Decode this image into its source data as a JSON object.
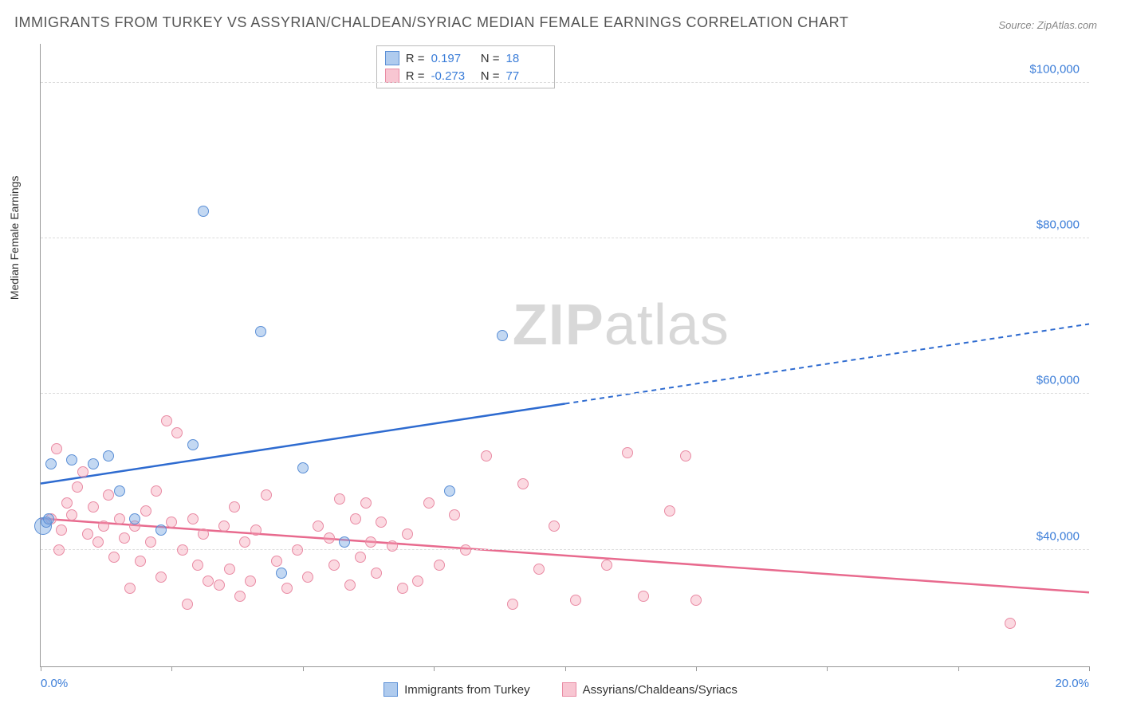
{
  "title": "IMMIGRANTS FROM TURKEY VS ASSYRIAN/CHALDEAN/SYRIAC MEDIAN FEMALE EARNINGS CORRELATION CHART",
  "source": "Source: ZipAtlas.com",
  "ylabel": "Median Female Earnings",
  "watermark_zip": "ZIP",
  "watermark_atlas": "atlas",
  "colors": {
    "blue_fill": "rgba(122,168,226,0.45)",
    "blue_stroke": "#5b8fd6",
    "blue_line": "#2e6bd0",
    "pink_fill": "rgba(244,160,180,0.4)",
    "pink_stroke": "#e98ba4",
    "pink_line": "#e86a8e",
    "grid": "#dddddd",
    "axis": "#999999",
    "tick_text": "#3b7dd8",
    "title_text": "#555555",
    "bg": "#ffffff"
  },
  "chart": {
    "type": "scatter",
    "xlim": [
      0,
      20
    ],
    "ylim": [
      25000,
      105000
    ],
    "x_ticks": [
      0,
      2.5,
      5,
      7.5,
      10,
      12.5,
      15,
      17.5,
      20
    ],
    "x_tick_labels": {
      "0": "0.0%",
      "20": "20.0%"
    },
    "y_gridlines": [
      40000,
      60000,
      80000,
      100000
    ],
    "y_tick_labels": {
      "40000": "$40,000",
      "60000": "$60,000",
      "80000": "$80,000",
      "100000": "$100,000"
    },
    "marker_size": 14,
    "trend_line_width": 2.5,
    "series": [
      {
        "name": "Immigrants from Turkey",
        "color_key": "blue",
        "R": "0.197",
        "N": "18",
        "trend": {
          "y_at_0": 48500,
          "y_at_20": 69000,
          "solid_until_x": 10
        },
        "points": [
          {
            "x": 3.1,
            "y": 83500
          },
          {
            "x": 4.2,
            "y": 68000
          },
          {
            "x": 8.8,
            "y": 67500
          },
          {
            "x": 0.2,
            "y": 51000
          },
          {
            "x": 0.6,
            "y": 51500
          },
          {
            "x": 1.0,
            "y": 51000
          },
          {
            "x": 1.3,
            "y": 52000
          },
          {
            "x": 2.9,
            "y": 53500
          },
          {
            "x": 2.3,
            "y": 42500
          },
          {
            "x": 5.0,
            "y": 50500
          },
          {
            "x": 7.8,
            "y": 47500
          },
          {
            "x": 4.6,
            "y": 37000
          },
          {
            "x": 5.8,
            "y": 41000
          },
          {
            "x": 0.05,
            "y": 43000,
            "size": 22
          },
          {
            "x": 0.1,
            "y": 43500
          },
          {
            "x": 0.15,
            "y": 44000
          },
          {
            "x": 1.5,
            "y": 47500
          },
          {
            "x": 1.8,
            "y": 44000
          }
        ]
      },
      {
        "name": "Assyrians/Chaldeans/Syriacs",
        "color_key": "pink",
        "R": "-0.273",
        "N": "77",
        "trend": {
          "y_at_0": 44000,
          "y_at_20": 34500,
          "solid_until_x": 20
        },
        "points": [
          {
            "x": 0.3,
            "y": 53000
          },
          {
            "x": 0.5,
            "y": 46000
          },
          {
            "x": 0.6,
            "y": 44500
          },
          {
            "x": 0.7,
            "y": 48000
          },
          {
            "x": 0.8,
            "y": 50000
          },
          {
            "x": 0.9,
            "y": 42000
          },
          {
            "x": 1.0,
            "y": 45500
          },
          {
            "x": 1.1,
            "y": 41000
          },
          {
            "x": 1.2,
            "y": 43000
          },
          {
            "x": 1.3,
            "y": 47000
          },
          {
            "x": 1.4,
            "y": 39000
          },
          {
            "x": 1.5,
            "y": 44000
          },
          {
            "x": 1.6,
            "y": 41500
          },
          {
            "x": 1.7,
            "y": 35000
          },
          {
            "x": 1.8,
            "y": 43000
          },
          {
            "x": 1.9,
            "y": 38500
          },
          {
            "x": 2.0,
            "y": 45000
          },
          {
            "x": 2.1,
            "y": 41000
          },
          {
            "x": 2.2,
            "y": 47500
          },
          {
            "x": 2.3,
            "y": 36500
          },
          {
            "x": 2.4,
            "y": 56500
          },
          {
            "x": 2.5,
            "y": 43500
          },
          {
            "x": 2.6,
            "y": 55000
          },
          {
            "x": 2.7,
            "y": 40000
          },
          {
            "x": 2.8,
            "y": 33000
          },
          {
            "x": 2.9,
            "y": 44000
          },
          {
            "x": 3.0,
            "y": 38000
          },
          {
            "x": 3.1,
            "y": 42000
          },
          {
            "x": 3.2,
            "y": 36000
          },
          {
            "x": 3.4,
            "y": 35500
          },
          {
            "x": 3.5,
            "y": 43000
          },
          {
            "x": 3.6,
            "y": 37500
          },
          {
            "x": 3.7,
            "y": 45500
          },
          {
            "x": 3.8,
            "y": 34000
          },
          {
            "x": 3.9,
            "y": 41000
          },
          {
            "x": 4.0,
            "y": 36000
          },
          {
            "x": 4.1,
            "y": 42500
          },
          {
            "x": 4.3,
            "y": 47000
          },
          {
            "x": 4.5,
            "y": 38500
          },
          {
            "x": 4.7,
            "y": 35000
          },
          {
            "x": 4.9,
            "y": 40000
          },
          {
            "x": 5.1,
            "y": 36500
          },
          {
            "x": 5.3,
            "y": 43000
          },
          {
            "x": 5.5,
            "y": 41500
          },
          {
            "x": 5.6,
            "y": 38000
          },
          {
            "x": 5.7,
            "y": 46500
          },
          {
            "x": 5.9,
            "y": 35500
          },
          {
            "x": 6.0,
            "y": 44000
          },
          {
            "x": 6.1,
            "y": 39000
          },
          {
            "x": 6.2,
            "y": 46000
          },
          {
            "x": 6.3,
            "y": 41000
          },
          {
            "x": 6.4,
            "y": 37000
          },
          {
            "x": 6.5,
            "y": 43500
          },
          {
            "x": 6.7,
            "y": 40500
          },
          {
            "x": 6.9,
            "y": 35000
          },
          {
            "x": 7.0,
            "y": 42000
          },
          {
            "x": 7.2,
            "y": 36000
          },
          {
            "x": 7.4,
            "y": 46000
          },
          {
            "x": 7.6,
            "y": 38000
          },
          {
            "x": 7.9,
            "y": 44500
          },
          {
            "x": 8.1,
            "y": 40000
          },
          {
            "x": 8.5,
            "y": 52000
          },
          {
            "x": 9.0,
            "y": 33000
          },
          {
            "x": 9.2,
            "y": 48500
          },
          {
            "x": 9.5,
            "y": 37500
          },
          {
            "x": 9.8,
            "y": 43000
          },
          {
            "x": 10.2,
            "y": 33500
          },
          {
            "x": 10.8,
            "y": 38000
          },
          {
            "x": 11.2,
            "y": 52500
          },
          {
            "x": 11.5,
            "y": 34000
          },
          {
            "x": 12.0,
            "y": 45000
          },
          {
            "x": 12.3,
            "y": 52000
          },
          {
            "x": 12.5,
            "y": 33500
          },
          {
            "x": 18.5,
            "y": 30500
          },
          {
            "x": 0.2,
            "y": 44000
          },
          {
            "x": 0.4,
            "y": 42500
          },
          {
            "x": 0.35,
            "y": 40000
          }
        ]
      }
    ]
  }
}
